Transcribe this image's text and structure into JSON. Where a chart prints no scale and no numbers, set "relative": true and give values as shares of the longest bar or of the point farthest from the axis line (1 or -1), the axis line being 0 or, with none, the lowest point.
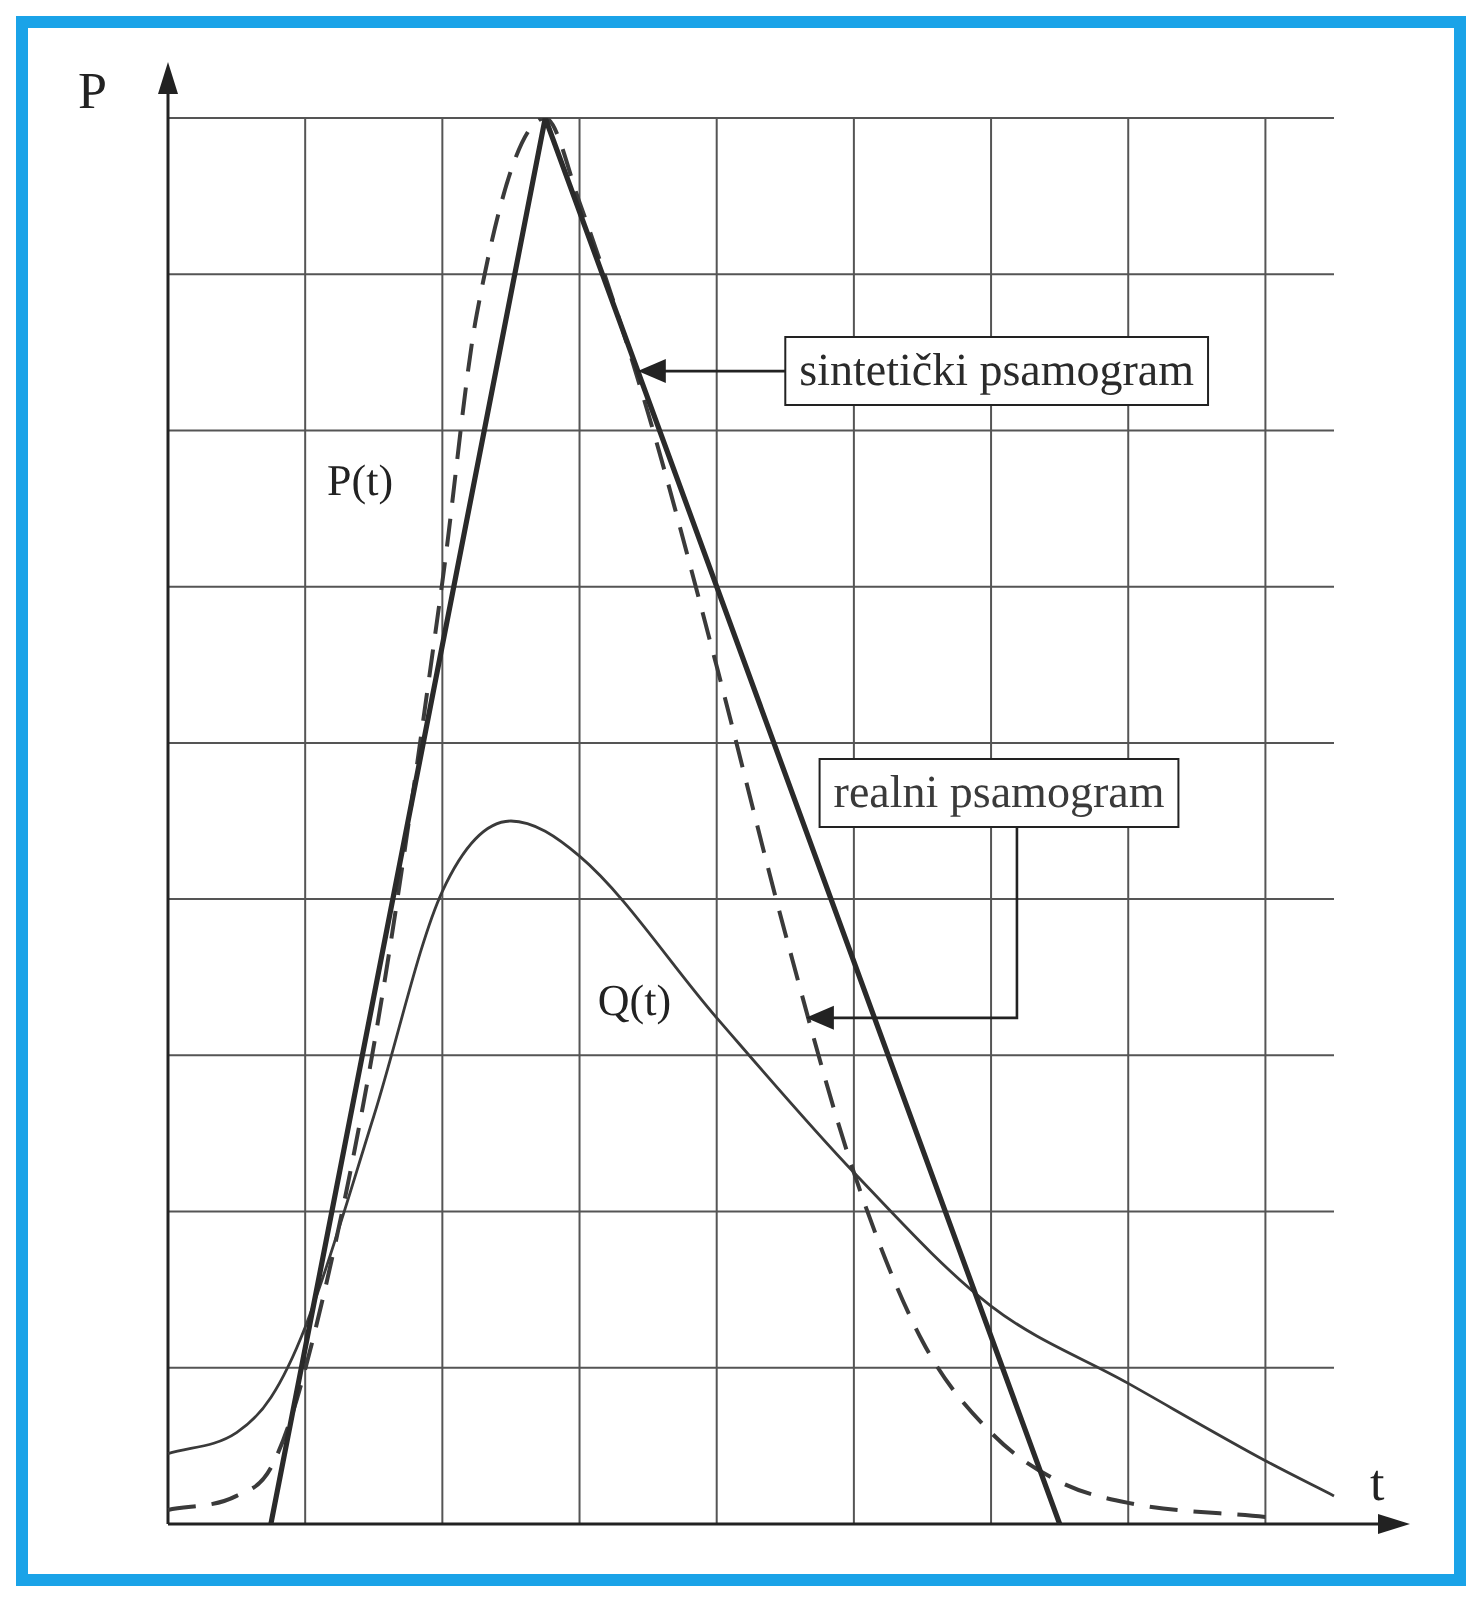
{
  "chart_data": {
    "type": "line",
    "relative": true,
    "xlabel": "t",
    "ylabel": "P",
    "grid": true,
    "legend": "right",
    "marker": "none",
    "categories": [
      null,
      null,
      null,
      null,
      null,
      null,
      null,
      null,
      null,
      null,
      null,
      null,
      null,
      null,
      null,
      null,
      null,
      null,
      null,
      null,
      null,
      null,
      null,
      null,
      null,
      null,
      null,
      null,
      null,
      null,
      null,
      null,
      null,
      null,
      null
    ],
    "series": [
      {
        "name": "sintetički psamogram",
        "color": "#2a2a2a",
        "line_style": "solid",
        "values": [
          null,
          null,
          null,
          0,
          null,
          null,
          null,
          null,
          null,
          null,
          null,
          1,
          null,
          null,
          null,
          null,
          null,
          null,
          null,
          null,
          null,
          null,
          null,
          null,
          null,
          null,
          0,
          null,
          null,
          null,
          null,
          null,
          null,
          null,
          null
        ]
      },
      {
        "name": "realni psamogram",
        "color": "#3a3a3a",
        "line_style": "dashed",
        "values": [
          0.01,
          null,
          0.02,
          0.04,
          0.11,
          null,
          0.34,
          null,
          0.67,
          0.86,
          null,
          1,
          0.94,
          null,
          0.79,
          null,
          0.61,
          null,
          0.42,
          null,
          0.25,
          null,
          0.13,
          null,
          0.065,
          null,
          0.03,
          null,
          0.015,
          null,
          null,
          null,
          0.005,
          null,
          null
        ]
      },
      {
        "color": "#3a3a3a",
        "line_style": "solid",
        "values": [
          0.05,
          null,
          0.065,
          0.09,
          0.14,
          null,
          0.29,
          null,
          0.45,
          null,
          0.5,
          null,
          0.475,
          null,
          null,
          null,
          0.36,
          null,
          null,
          null,
          0.25,
          null,
          null,
          null,
          0.155,
          null,
          null,
          null,
          0.1,
          null,
          null,
          null,
          0.045,
          null,
          0.02
        ]
      }
    ],
    "annotations": [
      "P(t)",
      "Q(t)"
    ]
  }
}
